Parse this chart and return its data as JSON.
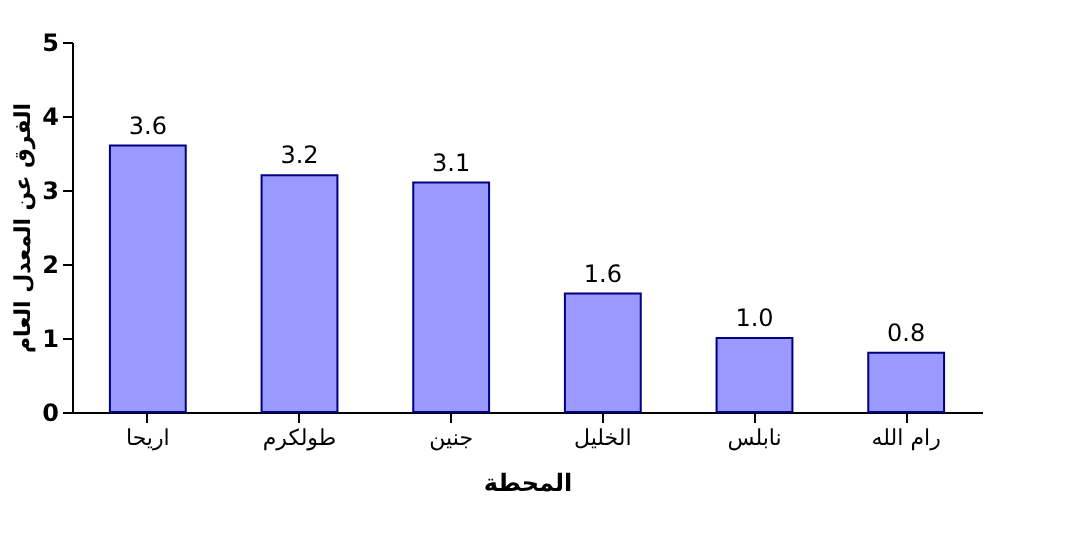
{
  "chart_data": {
    "type": "bar",
    "xlabel": "المحطة",
    "ylabel": "الفرق عن المعدل العام",
    "categories": [
      "اريحا",
      "طولكرم",
      "جنين",
      "الخليل",
      "نابلس",
      "رام الله"
    ],
    "values": [
      3.6,
      3.2,
      3.1,
      1.6,
      1.0,
      0.8
    ],
    "value_labels": [
      "3.6",
      "3.2",
      "3.1",
      "1.6",
      "1.0",
      "0.8"
    ],
    "color": "#9999ff",
    "ylim": [
      0,
      5
    ],
    "yticks": [
      0,
      1,
      2,
      3,
      4,
      5
    ],
    "grid": false
  }
}
